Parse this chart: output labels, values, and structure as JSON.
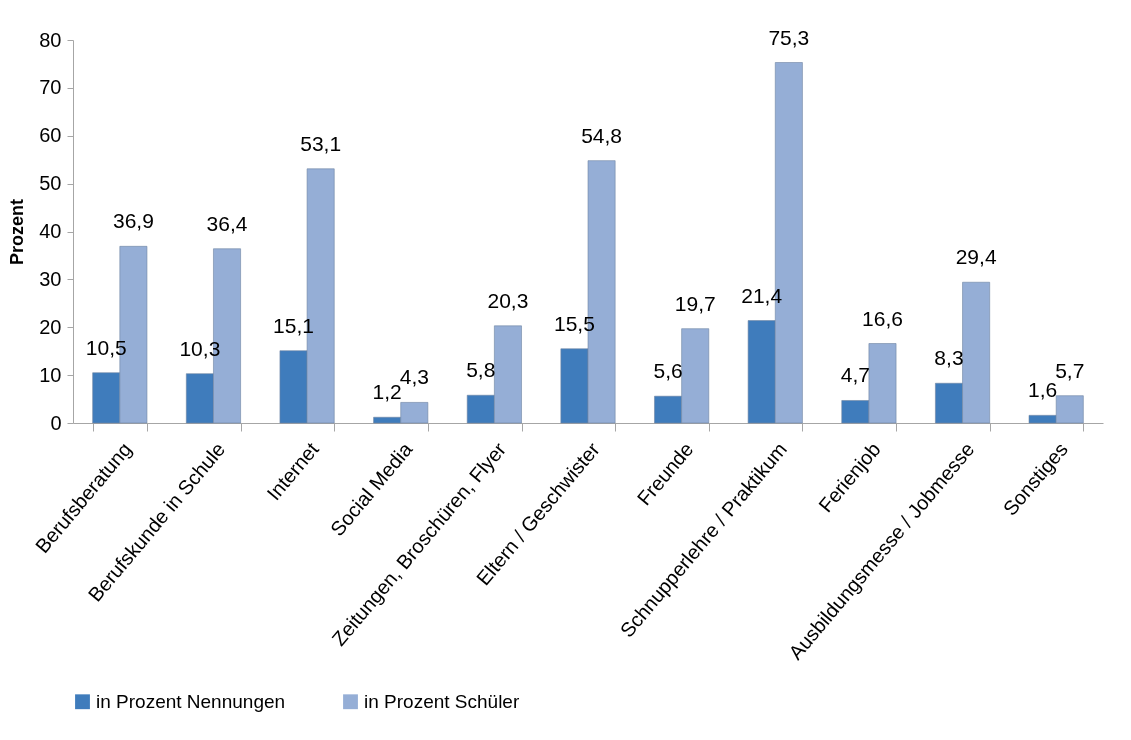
{
  "chart_data": {
    "type": "bar",
    "ylabel": "Prozent",
    "categories": [
      "Berufsberatung",
      "Berufskunde in Schule",
      "Internet",
      "Social Media",
      "Zeitungen, Broschüren, Flyer",
      "Eltern / Geschwister",
      "Freunde",
      "Schnupperlehre / Praktikum",
      "Ferienjob",
      "Ausbildungsmesse / Jobmesse",
      "Sonstiges"
    ],
    "series": [
      {
        "name": "in Prozent Nennungen",
        "color": "#3f7cbc",
        "values": [
          10.5,
          10.3,
          15.1,
          1.2,
          5.8,
          15.5,
          5.6,
          21.4,
          4.7,
          8.3,
          1.6
        ],
        "value_labels": [
          "10,5",
          "10,3",
          "15,1",
          "1,2",
          "5,8",
          "15,5",
          "5,6",
          "21,4",
          "4,7",
          "8,3",
          "1,6"
        ]
      },
      {
        "name": "in Prozent Schüler",
        "color": "#95aed6",
        "values": [
          36.9,
          36.4,
          53.1,
          4.3,
          20.3,
          54.8,
          19.7,
          75.3,
          16.6,
          29.4,
          5.7
        ],
        "value_labels": [
          "36,9",
          "36,4",
          "53,1",
          "4,3",
          "20,3",
          "54,8",
          "19,7",
          "75,3",
          "16,6",
          "29,4",
          "5,7"
        ]
      }
    ],
    "ylim": [
      0,
      80
    ],
    "yticks": [
      0,
      10,
      20,
      30,
      40,
      50,
      60,
      70,
      80
    ],
    "legend": "bottom"
  }
}
